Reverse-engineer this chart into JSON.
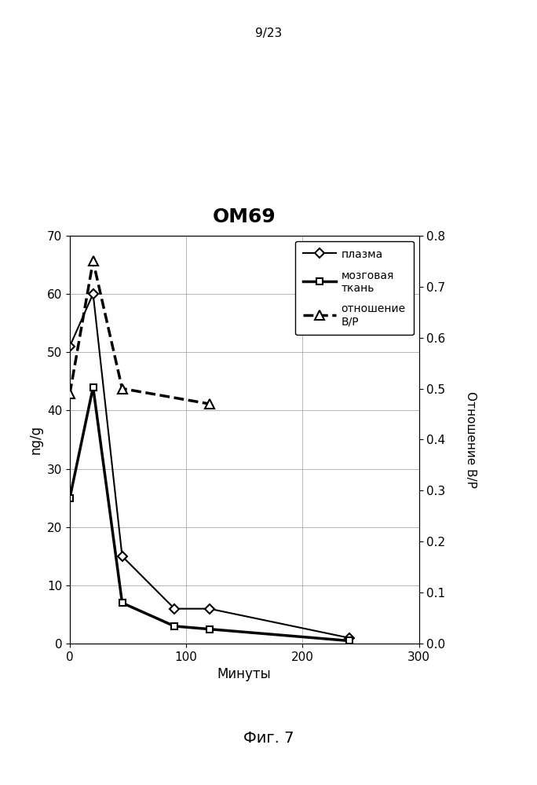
{
  "title": "OM69",
  "xlabel": "Минуты",
  "ylabel_left": "ng/g",
  "ylabel_right": "Отношение В/Р",
  "page_label": "9/23",
  "fig_label": "Фиг. 7",
  "plasma": {
    "x": [
      0,
      20,
      45,
      90,
      120,
      240
    ],
    "y": [
      51,
      60,
      15,
      6,
      6,
      1
    ],
    "label": "плазма",
    "linewidth": 1.5,
    "marker": "D",
    "markersize": 6
  },
  "brain": {
    "x": [
      0,
      20,
      45,
      90,
      120,
      240
    ],
    "y": [
      25,
      44,
      7,
      3,
      2.5,
      0.5
    ],
    "label": "мозговая\nткань",
    "linewidth": 2.5,
    "marker": "s",
    "markersize": 6
  },
  "ratio": {
    "x": [
      0,
      20,
      45,
      120
    ],
    "y": [
      0.49,
      0.75,
      0.5,
      0.47
    ],
    "label": "отношение\nВ/Р",
    "linewidth": 2.5,
    "linestyle": "--",
    "marker": "^",
    "markersize": 9
  },
  "xlim": [
    0,
    300
  ],
  "ylim_left": [
    0,
    70
  ],
  "ylim_right": [
    0,
    0.8
  ],
  "xticks": [
    0,
    100,
    200,
    300
  ],
  "yticks_left": [
    0,
    10,
    20,
    30,
    40,
    50,
    60,
    70
  ],
  "yticks_right": [
    0,
    0.1,
    0.2,
    0.3,
    0.4,
    0.5,
    0.6,
    0.7,
    0.8
  ]
}
